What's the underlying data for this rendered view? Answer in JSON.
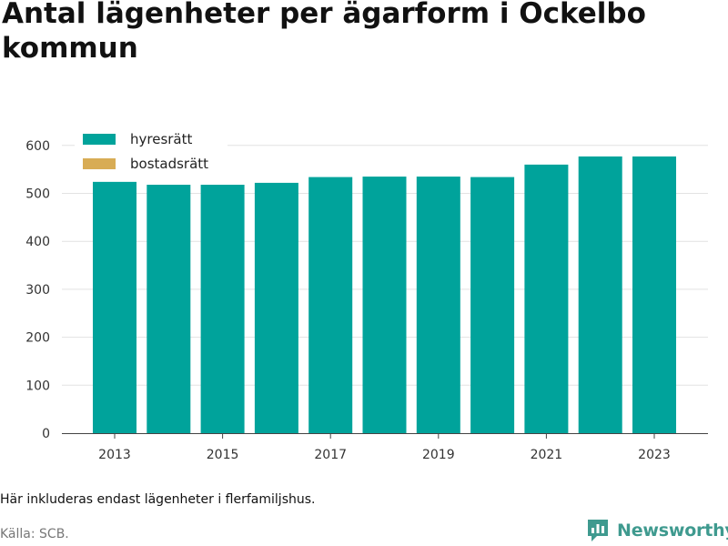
{
  "title": "Antal lägenheter per ägarform i Ockelbo kommun",
  "note": "Här inkluderas endast lägenheter i flerfamiljshus.",
  "source": "Källa: SCB.",
  "brand": {
    "name": "Newsworthy",
    "icon": "newsworthy-logo-icon",
    "color": "#3f9a8f"
  },
  "chart_data": {
    "type": "bar",
    "stacked": true,
    "categories": [
      2013,
      2014,
      2015,
      2016,
      2017,
      2018,
      2019,
      2020,
      2021,
      2022,
      2023
    ],
    "x_tick_labels": [
      "2013",
      "2015",
      "2017",
      "2019",
      "2021",
      "2023"
    ],
    "series": [
      {
        "name": "hyresrätt",
        "color": "#00a39b",
        "values": [
          524,
          518,
          518,
          522,
          534,
          535,
          535,
          534,
          560,
          577,
          577
        ]
      },
      {
        "name": "bostadsrätt",
        "color": "#d8ac55",
        "values": [
          0,
          0,
          0,
          0,
          0,
          0,
          0,
          0,
          0,
          0,
          0
        ]
      }
    ],
    "y_ticks": [
      0,
      100,
      200,
      300,
      400,
      500,
      600
    ],
    "ylim": [
      0,
      620
    ],
    "grid": true,
    "legend_position": "top-left"
  }
}
